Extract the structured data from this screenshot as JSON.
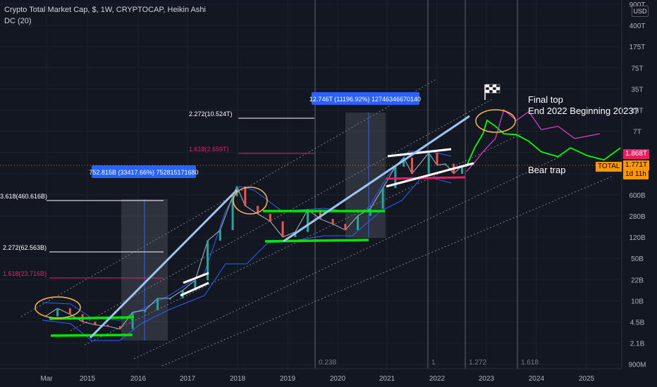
{
  "header": {
    "title": "Crypto Total Market Cap, $, 1W, CRYPTOCAP, Heikin Ashi",
    "indicator": "DC (20)"
  },
  "price_scale": {
    "unit_badge": "USD",
    "labels": [
      "900T",
      "400T",
      "175T",
      "75T",
      "35T",
      "15T",
      "7T",
      "3T",
      "1.3T",
      "600B",
      "280B",
      "120B",
      "50B",
      "22B",
      "10B",
      "4.5B",
      "2.1B",
      "900M"
    ],
    "current_price": "1.771T",
    "current_price_symbol": "TOTAL",
    "countdown": "1d 11h",
    "ref_price": "1.868T"
  },
  "time_axis": [
    "Mar",
    "2015",
    "2016",
    "2017",
    "2018",
    "2019",
    "2020",
    "2021",
    "2022",
    "2023",
    "2024",
    "2025"
  ],
  "fib_time_labels": [
    "0.238",
    "1",
    "1.272",
    "1.618"
  ],
  "colors": {
    "background": "#131722",
    "candle_up": "#26a69a",
    "candle_down": "#ef5350",
    "donchian": "#2962ff",
    "fib_magenta": "#e91e63",
    "green_level": "#00e600",
    "light_blue_trend": "#9ec5f0",
    "projection_green": "#00ff00",
    "projection_magenta": "#e040c8",
    "ellipse": "#ffb74d",
    "price_tag": "#ff9800"
  },
  "chart_data": {
    "type": "line",
    "title": "Crypto Total Market Cap, $, 1W, CRYPTOCAP, Heikin Ashi",
    "scale": "log",
    "ylim": [
      "900M",
      "900T"
    ],
    "series": [
      {
        "name": "TOTAL",
        "points": [
          {
            "x": "2014-03",
            "y": 5500000000.0
          },
          {
            "x": "2014-06",
            "y": 7500000000.0
          },
          {
            "x": "2014-09",
            "y": 6000000000.0
          },
          {
            "x": "2014-12",
            "y": 4500000000.0
          },
          {
            "x": "2015-03",
            "y": 4000000000.0
          },
          {
            "x": "2015-06",
            "y": 3800000000.0
          },
          {
            "x": "2015-09",
            "y": 3400000000.0
          },
          {
            "x": "2015-12",
            "y": 6500000000.0
          },
          {
            "x": "2016-03",
            "y": 7000000000.0
          },
          {
            "x": "2016-06",
            "y": 11000000000.0
          },
          {
            "x": "2016-09",
            "y": 11000000000.0
          },
          {
            "x": "2016-12",
            "y": 15000000000.0
          },
          {
            "x": "2017-03",
            "y": 22000000000.0
          },
          {
            "x": "2017-06",
            "y": 100000000000.0
          },
          {
            "x": "2017-09",
            "y": 150000000000.0
          },
          {
            "x": "2017-12",
            "y": 550000000000.0
          },
          {
            "x": "2018-01",
            "y": 800000000000.0
          },
          {
            "x": "2018-03",
            "y": 380000000000.0
          },
          {
            "x": "2018-06",
            "y": 280000000000.0
          },
          {
            "x": "2018-09",
            "y": 210000000000.0
          },
          {
            "x": "2018-12",
            "y": 115000000000.0
          },
          {
            "x": "2019-03",
            "y": 140000000000.0
          },
          {
            "x": "2019-06",
            "y": 330000000000.0
          },
          {
            "x": "2019-09",
            "y": 230000000000.0
          },
          {
            "x": "2019-12",
            "y": 190000000000.0
          },
          {
            "x": "2020-03",
            "y": 150000000000.0
          },
          {
            "x": "2020-06",
            "y": 260000000000.0
          },
          {
            "x": "2020-09",
            "y": 340000000000.0
          },
          {
            "x": "2020-12",
            "y": 750000000000.0
          },
          {
            "x": "2021-03",
            "y": 1700000000000.0
          },
          {
            "x": "2021-05",
            "y": 2400000000000.0
          },
          {
            "x": "2021-07",
            "y": 1300000000000.0
          },
          {
            "x": "2021-11",
            "y": 2900000000000.0
          },
          {
            "x": "2022-01",
            "y": 1800000000000.0
          },
          {
            "x": "2022-03",
            "y": 1900000000000.0
          },
          {
            "x": "2022-05",
            "y": 1300000000000.0
          },
          {
            "x": "2022-07",
            "y": 1771000000000.0
          }
        ]
      },
      {
        "name": "Projection (green)",
        "points": [
          {
            "x": "2022-08",
            "y": 1700000000000.0
          },
          {
            "x": "2022-10",
            "y": 3500000000000.0
          },
          {
            "x": "2022-12",
            "y": 6000000000000.0
          },
          {
            "x": "2023-01",
            "y": 10000000000000.0
          },
          {
            "x": "2023-03",
            "y": 8000000000000.0
          },
          {
            "x": "2023-05",
            "y": 6000000000000.0
          },
          {
            "x": "2023-08",
            "y": 5800000000000.0
          },
          {
            "x": "2023-11",
            "y": 4500000000000.0
          },
          {
            "x": "2024-02",
            "y": 3000000000000.0
          },
          {
            "x": "2024-06",
            "y": 2500000000000.0
          },
          {
            "x": "2024-09",
            "y": 3500000000000.0
          },
          {
            "x": "2025-01",
            "y": 2600000000000.0
          },
          {
            "x": "2025-05",
            "y": 2200000000000.0
          },
          {
            "x": "2025-09",
            "y": 3500000000000.0
          }
        ]
      },
      {
        "name": "Projection (magenta)",
        "points": [
          {
            "x": "2022-08",
            "y": 1400000000000.0
          },
          {
            "x": "2022-10",
            "y": 2000000000000.0
          },
          {
            "x": "2022-12",
            "y": 3000000000000.0
          },
          {
            "x": "2023-03",
            "y": 5000000000000.0
          },
          {
            "x": "2023-05",
            "y": 15000000000000.0
          },
          {
            "x": "2023-08",
            "y": 10000000000000.0
          },
          {
            "x": "2023-11",
            "y": 14000000000000.0
          },
          {
            "x": "2024-02",
            "y": 7000000000000.0
          },
          {
            "x": "2024-06",
            "y": 8000000000000.0
          },
          {
            "x": "2024-10",
            "y": 5000000000000.0
          },
          {
            "x": "2025-04",
            "y": 6000000000000.0
          }
        ]
      }
    ],
    "annotations": [
      {
        "kind": "fib_level",
        "label": "3.618(460.616B)",
        "color": "#ffffff"
      },
      {
        "kind": "fib_level",
        "label": "2.272(62.563B)",
        "color": "#ffffff"
      },
      {
        "kind": "fib_level",
        "label": "1.618(23.716B)",
        "color": "#e91e63"
      },
      {
        "kind": "fib_level",
        "label": "2.272(10.524T)",
        "color": "#ffffff"
      },
      {
        "kind": "fib_level",
        "label": "1.618(2.659T)",
        "color": "#e91e63"
      },
      {
        "kind": "measure",
        "label": "752.815B (33417.66%) 752815171680"
      },
      {
        "kind": "measure",
        "label": "12.746T (11196.92%) 12746346670140"
      },
      {
        "kind": "text",
        "label": "Final top"
      },
      {
        "kind": "text",
        "label": "End 2022 Beginning 2023?"
      },
      {
        "kind": "text",
        "label": "Bear trap"
      }
    ]
  }
}
